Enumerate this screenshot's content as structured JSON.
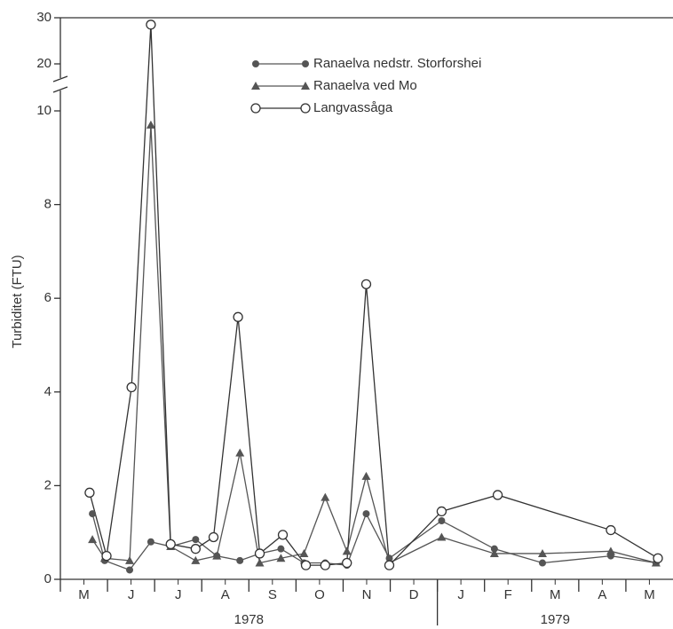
{
  "chart_data": {
    "type": "line",
    "y_label": "Turbiditet (FTU)",
    "categories": [
      "M",
      "J",
      "J",
      "A",
      "S",
      "O",
      "N",
      "D",
      "J",
      "F",
      "M",
      "A",
      "M"
    ],
    "year_labels": [
      {
        "text": "1978",
        "from": 0,
        "to": 8
      },
      {
        "text": "1979",
        "from": 8,
        "to": 13
      }
    ],
    "xlim": [
      0,
      13
    ],
    "ylim": [
      0,
      30
    ],
    "ybreak": [
      10,
      20
    ],
    "yticks": [
      0,
      2,
      4,
      6,
      8,
      10,
      20,
      30
    ],
    "legend": "top",
    "series": [
      {
        "name": "Ranaelva nedstr. Storforshei",
        "color": "#555555",
        "marker": "filled-circle",
        "x": [
          0.68,
          0.94,
          1.47,
          1.92,
          2.34,
          2.87,
          3.32,
          3.81,
          4.23,
          4.68,
          5.17,
          5.62,
          6.08,
          6.49,
          6.98,
          8.09,
          9.21,
          10.23,
          11.68,
          12.64
        ],
        "values": [
          1.4,
          0.4,
          0.2,
          0.8,
          0.7,
          0.85,
          0.5,
          0.4,
          0.55,
          0.65,
          0.35,
          0.35,
          0.3,
          1.4,
          0.45,
          1.25,
          0.65,
          0.35,
          0.5,
          0.35
        ]
      },
      {
        "name": "Ranaelva ved Mo",
        "color": "#555555",
        "marker": "triangle",
        "x": [
          0.68,
          0.94,
          1.47,
          1.92,
          2.34,
          2.87,
          3.32,
          3.81,
          4.23,
          4.68,
          5.17,
          5.62,
          6.08,
          6.49,
          6.98,
          8.09,
          9.21,
          10.23,
          11.68,
          12.64
        ],
        "values": [
          0.85,
          0.45,
          0.4,
          9.7,
          0.7,
          0.4,
          0.5,
          2.7,
          0.35,
          0.45,
          0.55,
          1.75,
          0.6,
          2.2,
          0.35,
          0.9,
          0.55,
          0.55,
          0.6,
          0.35
        ]
      },
      {
        "name": "Langvassåga",
        "color": "#333333",
        "marker": "open-circle",
        "x": [
          0.62,
          0.98,
          1.51,
          1.92,
          2.34,
          2.87,
          3.25,
          3.77,
          4.23,
          4.72,
          5.21,
          5.62,
          6.08,
          6.49,
          6.98,
          8.09,
          9.28,
          11.68,
          12.68
        ],
        "values": [
          1.85,
          0.5,
          4.1,
          28.5,
          0.75,
          0.65,
          0.9,
          5.6,
          0.55,
          0.95,
          0.3,
          0.3,
          0.35,
          6.3,
          0.3,
          1.45,
          1.8,
          1.05,
          0.45
        ]
      }
    ]
  }
}
